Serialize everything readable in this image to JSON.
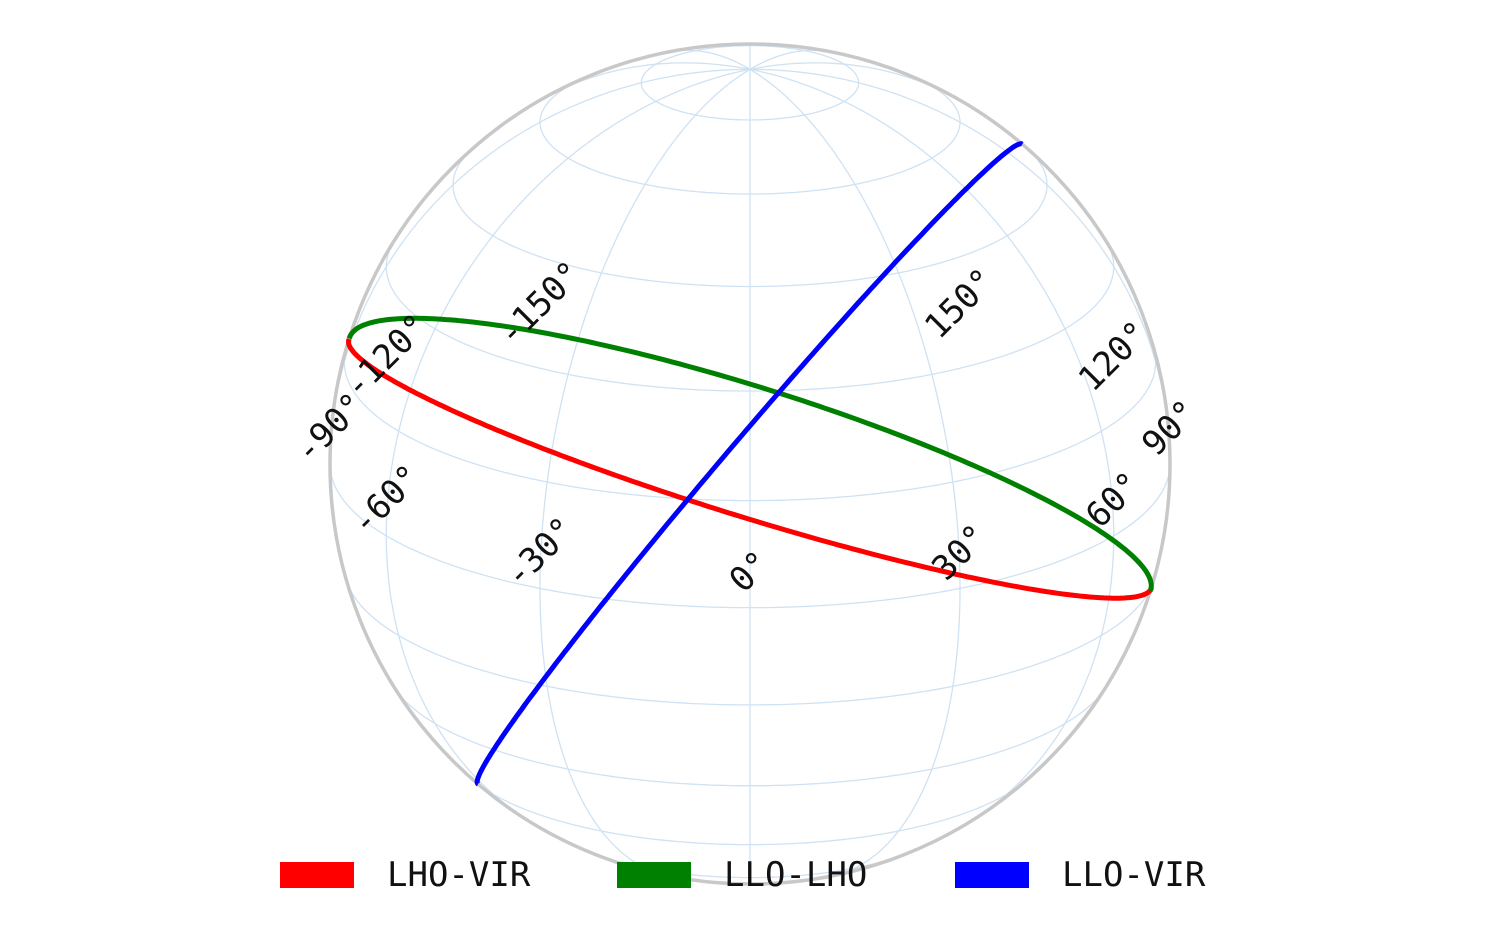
{
  "chart_data": {
    "type": "line",
    "projection": "orthographic",
    "rotation_deg": 20,
    "center_lon_deg": 0,
    "graticule": {
      "lon_step_deg": 30,
      "lat_step_deg": 15,
      "color": "#cfe2f3",
      "outline_color": "#c8c8c8"
    },
    "tick_labels": [
      "-150°",
      "-120°",
      "-90°",
      "-60°",
      "-30°",
      "0°",
      "30°",
      "60°",
      "90°",
      "120°",
      "150°"
    ],
    "tick_lons": [
      -150,
      -120,
      -90,
      -60,
      -30,
      0,
      30,
      60,
      90,
      120,
      150
    ],
    "series": [
      {
        "name": "LHO-VIR",
        "color": "#ff0000",
        "axis_lon_deg": 125,
        "axis_lat_deg": 69,
        "x_lon_deg": [
          -60,
          60,
          120
        ],
        "x_lat_deg": [
          -70,
          60,
          5
        ]
      },
      {
        "name": "LLO-LHO",
        "color": "#008000",
        "axis_lon_deg": 149,
        "axis_lat_deg": 55,
        "x_lon_deg": [
          -60,
          60
        ],
        "x_lat_deg": [
          -70,
          60
        ]
      },
      {
        "name": "LLO-VIR",
        "color": "#0000ff",
        "axis_lon_deg": 70,
        "axis_lat_deg": -36,
        "x_lon_deg": [
          -60,
          60
        ],
        "x_lat_deg": [
          -70,
          60
        ]
      }
    ],
    "legend_position": "bottom"
  }
}
